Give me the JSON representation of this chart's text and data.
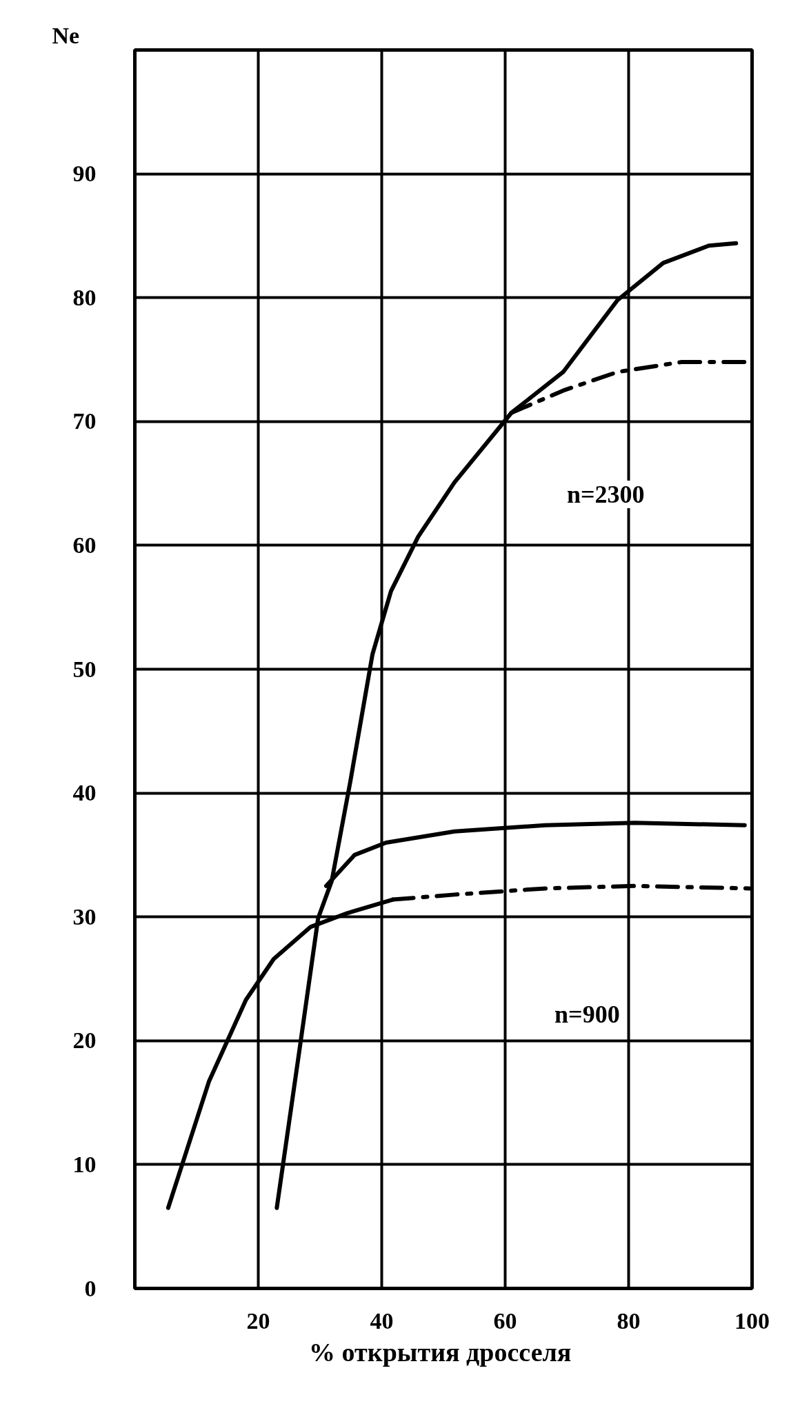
{
  "chart_data": {
    "type": "line",
    "xlabel": "%  открытия дросселя",
    "ylabel": "Ne",
    "xlim": [
      0,
      100
    ],
    "ylim": [
      0,
      100
    ],
    "xticks": [
      20,
      40,
      60,
      80,
      100
    ],
    "yticks": [
      0,
      10,
      20,
      30,
      40,
      50,
      60,
      70,
      80,
      90
    ],
    "grid": true,
    "marker": "none",
    "series": [
      {
        "color": "#000000",
        "line_style": "solid",
        "x": [
          23,
          26.8,
          29.7,
          31.9,
          34.9,
          38.5,
          41.5,
          45.9,
          51.8,
          61,
          69.4,
          78.2,
          85.6,
          93,
          97.4
        ],
        "values": [
          6.5,
          19.7,
          29.9,
          32.9,
          40.9,
          51.2,
          56.3,
          60.7,
          65.1,
          70.7,
          74,
          79.8,
          82.8,
          84.2,
          84.4
        ]
      },
      {
        "color": "#000000",
        "line_style": "dashdot",
        "x": [
          61,
          69.4,
          78.2,
          88.5,
          99.6
        ],
        "values": [
          70.7,
          72.5,
          74,
          74.8,
          74.8
        ]
      },
      {
        "color": "#000000",
        "line_style": "solid",
        "x": [
          31,
          35.6,
          40.7,
          51.8,
          66.5,
          81,
          98.8
        ],
        "values": [
          32.5,
          35,
          36,
          36.9,
          37.4,
          37.6,
          37.4
        ]
      },
      {
        "color": "#000000",
        "line_style": "solid",
        "x": [
          5.4,
          12,
          18,
          22.5,
          28.5,
          34.4,
          41.8
        ],
        "values": [
          6.5,
          16.7,
          23.3,
          26.6,
          29.2,
          30.3,
          31.4
        ]
      },
      {
        "color": "#000000",
        "line_style": "dashdot",
        "x": [
          41.8,
          51.8,
          66.5,
          81,
          99.6
        ],
        "values": [
          31.4,
          31.8,
          32.3,
          32.5,
          32.3
        ]
      }
    ],
    "annotations": [
      "n=2300",
      "n=900"
    ]
  }
}
